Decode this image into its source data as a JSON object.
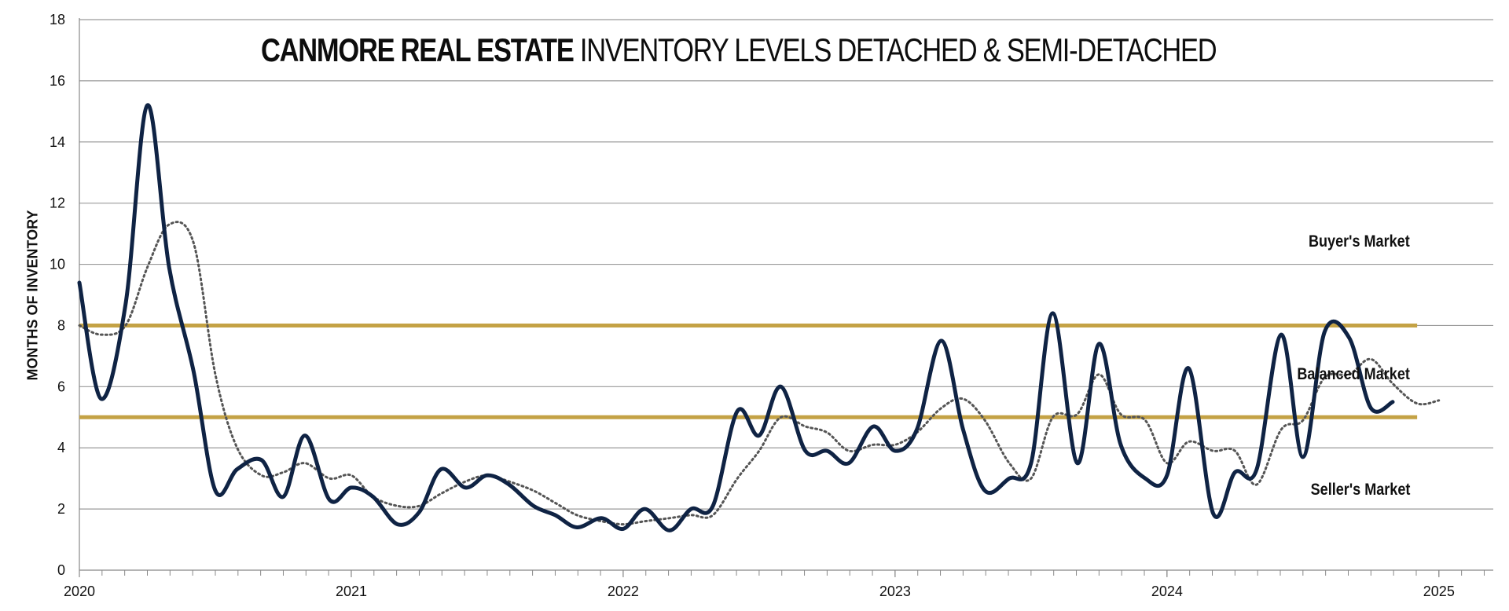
{
  "chart_data": {
    "type": "line",
    "title_bold": "CANMORE REAL ESTATE",
    "title_rest": "INVENTORY LEVELS DETACHED & SEMI-DETACHED",
    "ylabel": "MONTHS OF INVENTORY",
    "xlabel": "",
    "ylim": [
      0,
      18
    ],
    "yticks": [
      "0",
      "2",
      "4",
      "6",
      "8",
      "10",
      "12",
      "14",
      "16",
      "18"
    ],
    "xlim": [
      2020.0,
      2025.2
    ],
    "xticks": [
      {
        "value": 2020,
        "label": "2020"
      },
      {
        "value": 2021,
        "label": "2021"
      },
      {
        "value": 2022,
        "label": "2022"
      },
      {
        "value": 2023,
        "label": "2023"
      },
      {
        "value": 2024,
        "label": "2024"
      },
      {
        "value": 2025,
        "label": "2025"
      }
    ],
    "grid": true,
    "legend": "none",
    "thresholds": [
      {
        "value": 8,
        "x_start": 2020.0,
        "x_end": 2024.92
      },
      {
        "value": 5,
        "x_start": 2020.0,
        "x_end": 2024.92
      }
    ],
    "zone_labels": {
      "buyers": "Buyer's Market",
      "balanced": "Balanced Market",
      "sellers": "Seller's Market"
    },
    "colors": {
      "monthly": "#0f2344",
      "average": "#555555",
      "threshold": "#c4a245",
      "grid": "#9a9a9a"
    },
    "series": [
      {
        "style": "solid",
        "x": [
          2020.0,
          2020.08,
          2020.17,
          2020.25,
          2020.33,
          2020.42,
          2020.5,
          2020.58,
          2020.67,
          2020.75,
          2020.83,
          2020.92,
          2021.0,
          2021.08,
          2021.17,
          2021.25,
          2021.33,
          2021.42,
          2021.5,
          2021.58,
          2021.67,
          2021.75,
          2021.83,
          2021.92,
          2022.0,
          2022.08,
          2022.17,
          2022.25,
          2022.33,
          2022.42,
          2022.5,
          2022.58,
          2022.67,
          2022.75,
          2022.83,
          2022.92,
          2023.0,
          2023.08,
          2023.17,
          2023.25,
          2023.33,
          2023.42,
          2023.5,
          2023.58,
          2023.67,
          2023.75,
          2023.83,
          2023.92,
          2024.0,
          2024.08,
          2024.17,
          2024.25,
          2024.33,
          2024.42,
          2024.5,
          2024.58,
          2024.67,
          2024.75,
          2024.83
        ],
        "values": [
          9.4,
          5.6,
          8.7,
          15.2,
          9.9,
          6.5,
          2.6,
          3.3,
          3.6,
          2.4,
          4.4,
          2.3,
          2.7,
          2.4,
          1.5,
          1.9,
          3.3,
          2.7,
          3.1,
          2.8,
          2.1,
          1.8,
          1.4,
          1.7,
          1.35,
          2.0,
          1.3,
          2.0,
          2.1,
          5.2,
          4.4,
          6.0,
          3.9,
          3.9,
          3.5,
          4.7,
          3.9,
          4.6,
          7.5,
          4.6,
          2.6,
          3.0,
          3.5,
          8.4,
          3.5,
          7.4,
          4.1,
          3.0,
          3.1,
          6.6,
          1.85,
          3.2,
          3.3,
          7.7,
          3.7,
          7.8,
          7.6,
          5.3,
          5.5
        ]
      },
      {
        "style": "dotted",
        "x": [
          2020.0,
          2020.08,
          2020.17,
          2020.25,
          2020.33,
          2020.42,
          2020.5,
          2020.58,
          2020.67,
          2020.75,
          2020.83,
          2020.92,
          2021.0,
          2021.08,
          2021.17,
          2021.25,
          2021.33,
          2021.42,
          2021.5,
          2021.58,
          2021.67,
          2021.75,
          2021.83,
          2021.92,
          2022.0,
          2022.08,
          2022.17,
          2022.25,
          2022.33,
          2022.42,
          2022.5,
          2022.58,
          2022.67,
          2022.75,
          2022.83,
          2022.92,
          2023.0,
          2023.08,
          2023.17,
          2023.25,
          2023.33,
          2023.42,
          2023.5,
          2023.58,
          2023.67,
          2023.75,
          2023.83,
          2023.92,
          2024.0,
          2024.08,
          2024.17,
          2024.25,
          2024.33,
          2024.42,
          2024.5,
          2024.58,
          2024.67,
          2024.75,
          2024.83,
          2024.92,
          2025.0
        ],
        "values": [
          8.0,
          7.7,
          8.0,
          9.9,
          11.3,
          10.7,
          6.4,
          4.0,
          3.1,
          3.2,
          3.5,
          3.0,
          3.1,
          2.4,
          2.1,
          2.1,
          2.5,
          2.9,
          3.1,
          2.9,
          2.6,
          2.2,
          1.8,
          1.6,
          1.5,
          1.6,
          1.7,
          1.8,
          1.8,
          3.0,
          3.9,
          5.0,
          4.7,
          4.5,
          3.9,
          4.1,
          4.1,
          4.5,
          5.3,
          5.6,
          4.9,
          3.5,
          3.0,
          5.0,
          5.1,
          6.4,
          5.1,
          4.9,
          3.5,
          4.2,
          3.9,
          3.9,
          2.8,
          4.6,
          4.9,
          6.3,
          6.4,
          6.9,
          6.1,
          5.45,
          5.55
        ]
      }
    ]
  }
}
